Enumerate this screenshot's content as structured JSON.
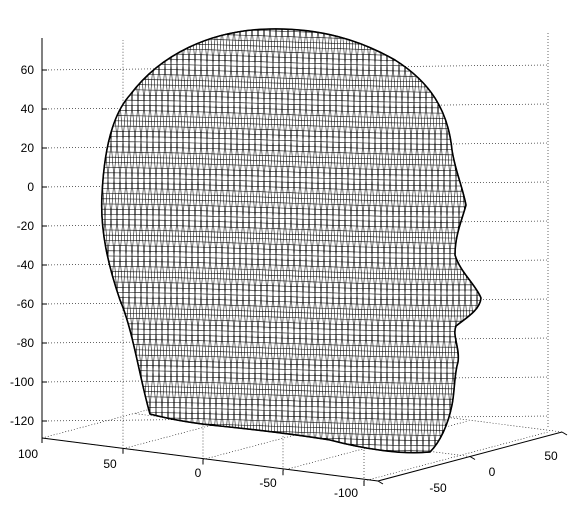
{
  "chart_data": {
    "type": "mesh3d",
    "title": "",
    "xlabel": "",
    "ylabel": "",
    "zlabel": "",
    "x_ticks": [
      "100",
      "50",
      "0",
      "-50",
      "-100"
    ],
    "y_ticks": [
      "-50",
      "0",
      "50"
    ],
    "z_ticks": [
      "60",
      "40",
      "20",
      "0",
      "-20",
      "-40",
      "-60",
      "-80",
      "-100",
      "-120"
    ],
    "xlim": [
      -100,
      100
    ],
    "ylim": [
      -50,
      50
    ],
    "zlim": [
      -130,
      75
    ],
    "grid": true,
    "surface": "triangulated wireframe head",
    "line_color": "#000000",
    "face_color": "#ffffff"
  }
}
